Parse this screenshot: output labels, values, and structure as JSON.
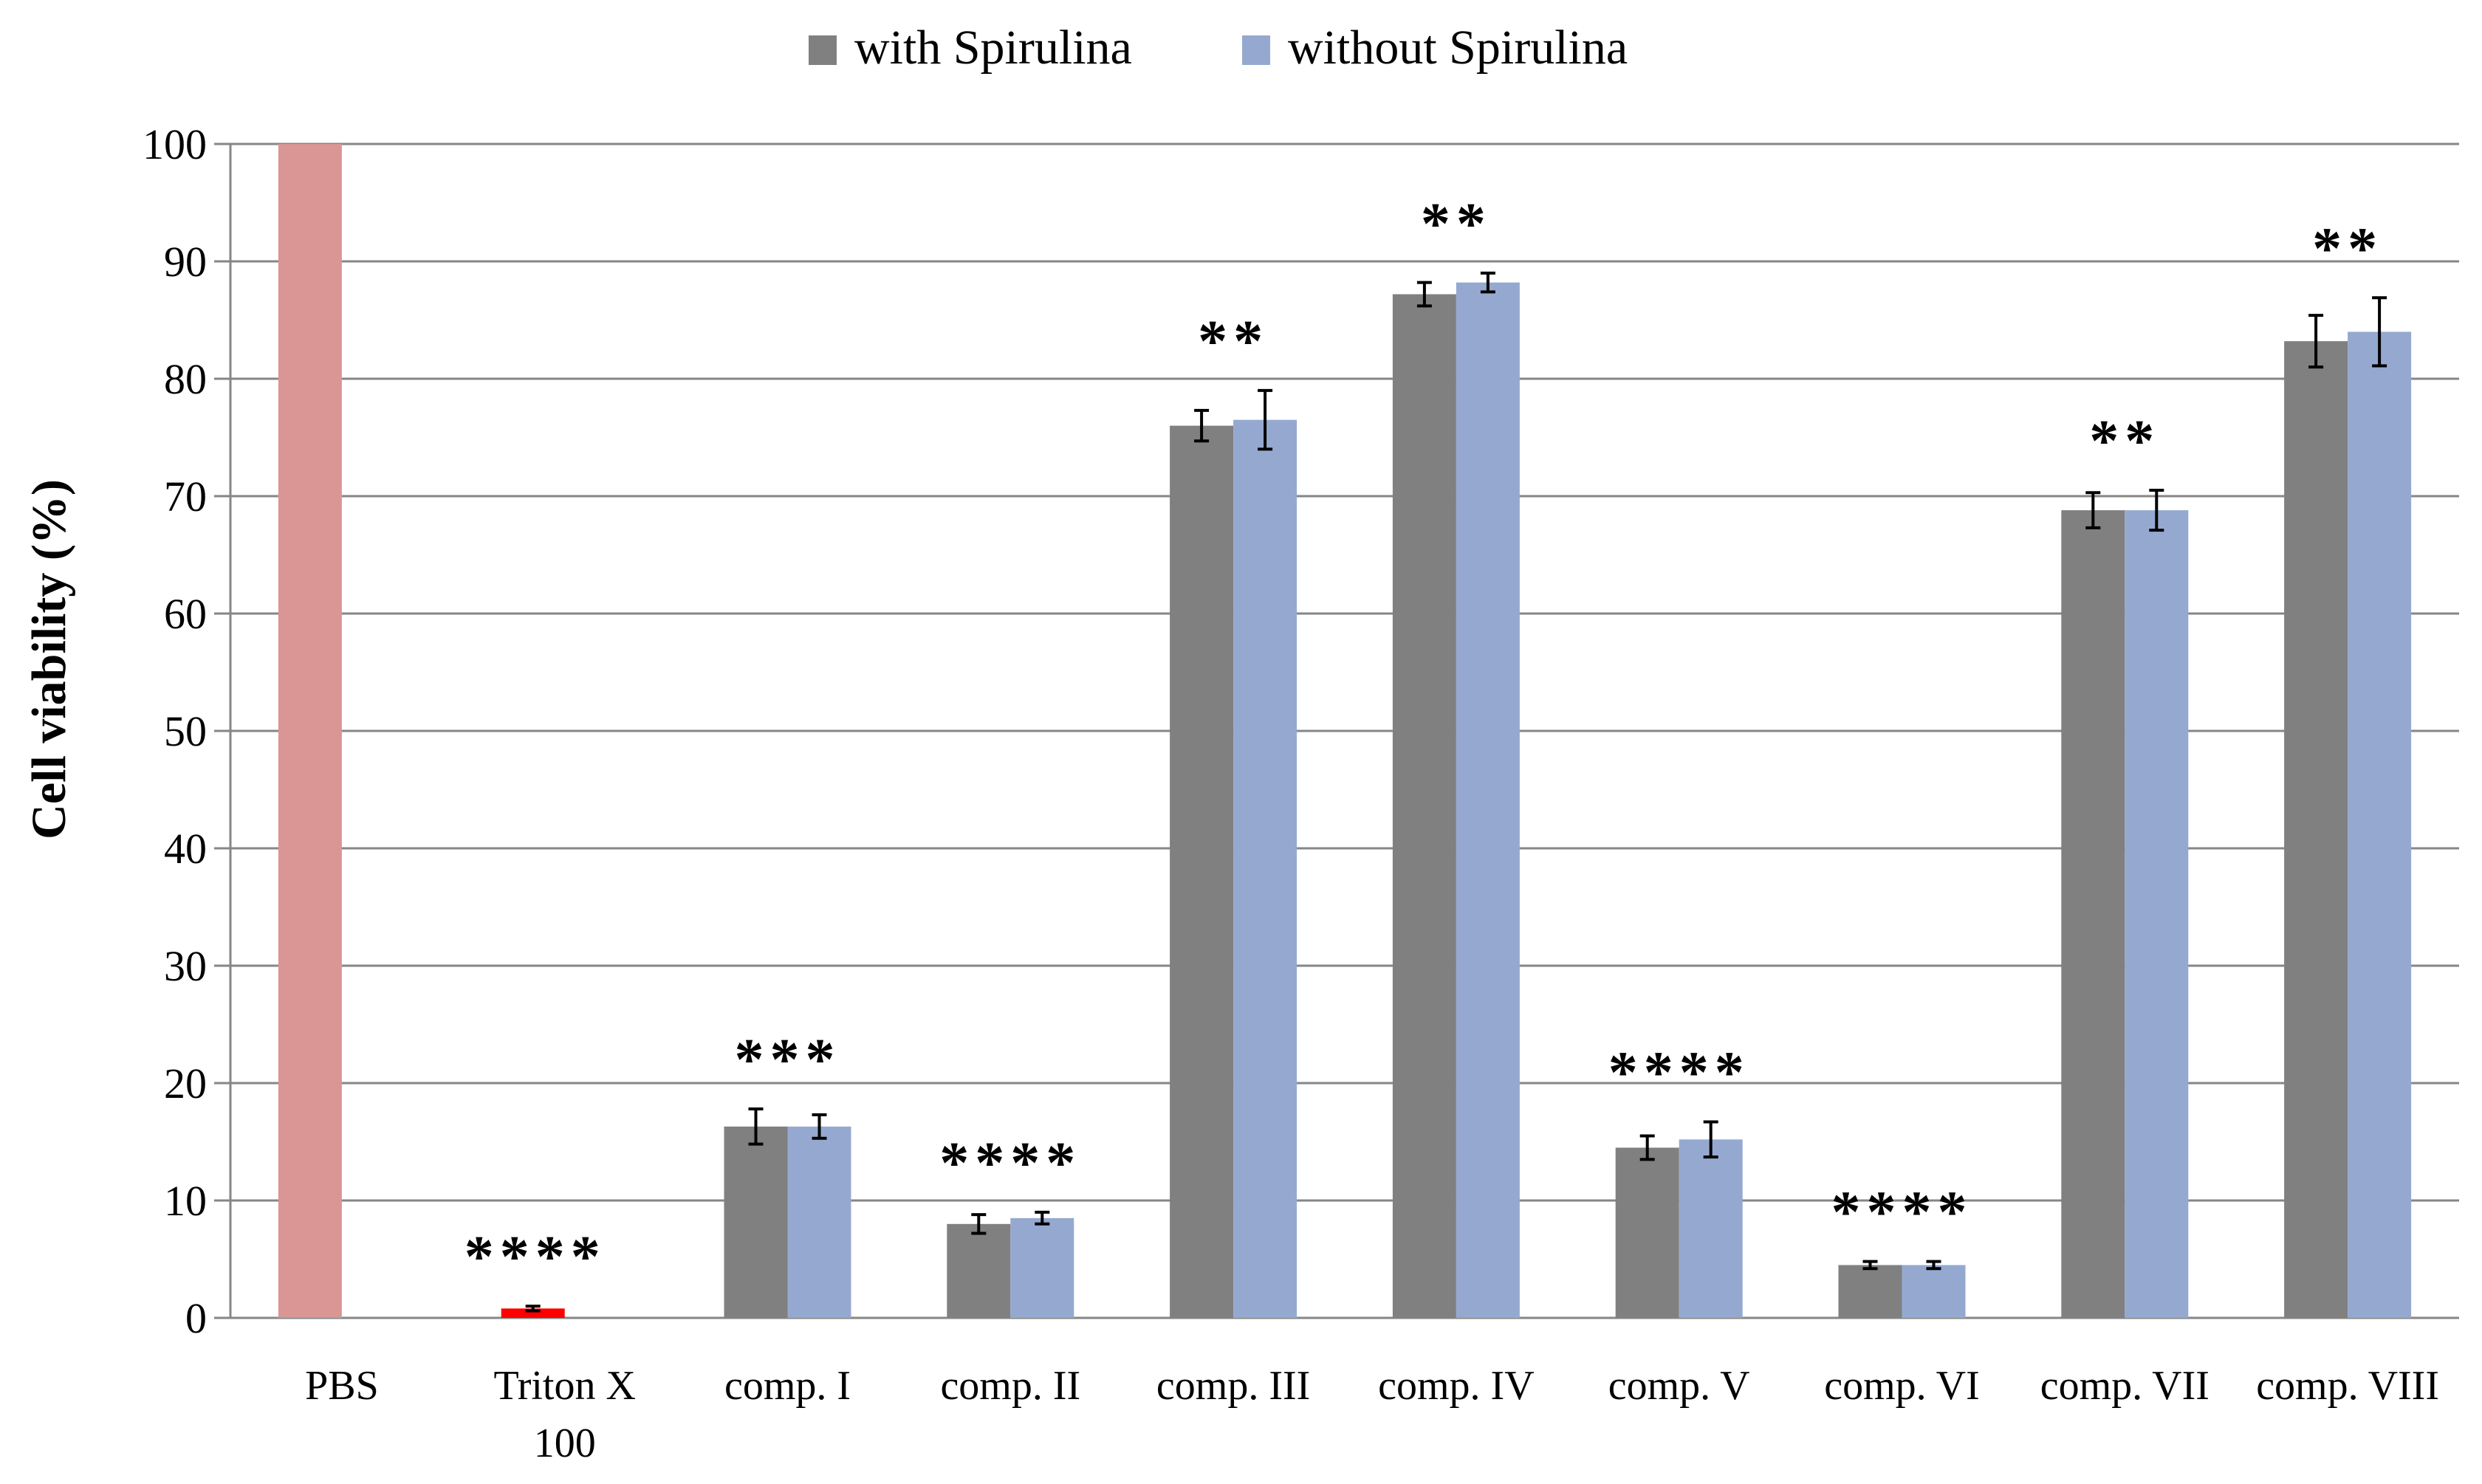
{
  "chart_data": {
    "type": "bar",
    "title": "",
    "xlabel": "",
    "ylabel": "Cell viability (%)",
    "ylim": [
      0,
      100
    ],
    "yticks": [
      0,
      10,
      20,
      30,
      40,
      50,
      60,
      70,
      80,
      90,
      100
    ],
    "grid": true,
    "legend_position": "top-center",
    "categories": [
      [
        "PBS"
      ],
      [
        "Triton X",
        "100"
      ],
      [
        "comp. I"
      ],
      [
        "comp. II"
      ],
      [
        "comp. III"
      ],
      [
        "comp. IV"
      ],
      [
        "comp. V"
      ],
      [
        "comp. VI"
      ],
      [
        "comp. VII"
      ],
      [
        "comp. VIII"
      ]
    ],
    "controls": [
      {
        "category_index": 0,
        "value": 100,
        "error": 0,
        "color": "#d99694"
      },
      {
        "category_index": 1,
        "value": 0.8,
        "error": 0.2,
        "color": "#ff0000"
      }
    ],
    "series": [
      {
        "name": "with Spirulina",
        "color": "#808080",
        "values": [
          null,
          null,
          16.3,
          8.0,
          76.0,
          87.2,
          14.5,
          4.5,
          68.8,
          83.2
        ],
        "errors": [
          null,
          null,
          1.5,
          0.8,
          1.3,
          1.0,
          1.0,
          0.3,
          1.5,
          2.2
        ]
      },
      {
        "name": "without Spirulina",
        "color": "#95a9d0",
        "values": [
          null,
          null,
          16.3,
          8.5,
          76.5,
          88.2,
          15.2,
          4.5,
          68.8,
          84.0
        ],
        "errors": [
          null,
          null,
          1.0,
          0.5,
          2.5,
          0.8,
          1.5,
          0.3,
          1.7,
          2.9
        ]
      }
    ],
    "significance": [
      "",
      "****",
      "***",
      "****",
      "**",
      "**",
      "****",
      "****",
      "**",
      "**"
    ]
  }
}
